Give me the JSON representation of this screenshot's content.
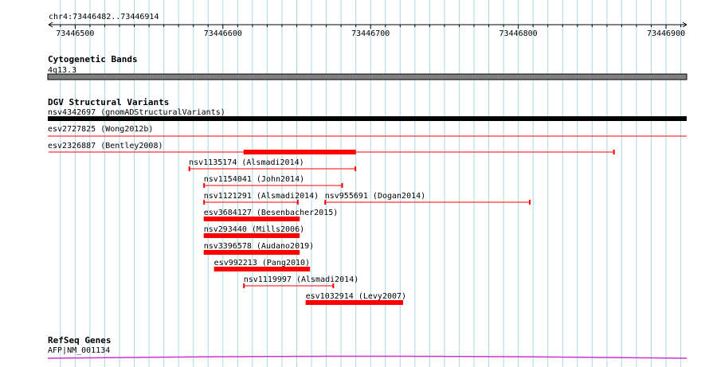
{
  "locus": "chr4:73446482..73446914",
  "ruler": {
    "start": 73446482,
    "end": 73446914,
    "ticks": [
      "73446500",
      "73446600",
      "73446700",
      "73446800",
      "73446900"
    ]
  },
  "colors": {
    "variant": "#ff0000",
    "band": "#808080",
    "gene": "#cc33cc",
    "grid": "#add8e6"
  },
  "cytoband": {
    "title": "Cytogenetic Bands",
    "label": "4q13.3"
  },
  "dgv": {
    "title": "DGV Structural Variants",
    "items": [
      {
        "label": "nsv4342697 (gnomADStructuralVariants)",
        "start": 73446482,
        "end": 73446914,
        "style": "full-black"
      },
      {
        "label": "esv2727825 (Wong2012b)",
        "start": 73446482,
        "end": 73446914,
        "style": "full-thin"
      },
      {
        "label": "esv2326887 (Bentley2008)",
        "start": 73446482,
        "end": 73446865,
        "style": "line",
        "thick_start": 73446614,
        "thick_end": 73446690
      },
      {
        "label": "nsv1135174 (Alsmadi2014)",
        "start": 73446577,
        "end": 73446690,
        "style": "line"
      },
      {
        "label": "nsv1154041 (John2014)",
        "start": 73446587,
        "end": 73446681,
        "style": "line"
      },
      {
        "label": "nsv1121291 (Alsmadi2014)",
        "start": 73446587,
        "end": 73446651,
        "style": "line"
      },
      {
        "label": "nsv955691 (Dogan2014)",
        "start": 73446669,
        "end": 73446808,
        "style": "line"
      },
      {
        "label": "esv3684127 (Besenbacher2015)",
        "start": 73446587,
        "end": 73446652,
        "style": "thick"
      },
      {
        "label": "nsv293440 (Mills2006)",
        "start": 73446587,
        "end": 73446652,
        "style": "thick"
      },
      {
        "label": "nsv3396578 (Audano2019)",
        "start": 73446587,
        "end": 73446652,
        "style": "thick"
      },
      {
        "label": "esv992213 (Pang2010)",
        "start": 73446594,
        "end": 73446659,
        "style": "thick"
      },
      {
        "label": "nsv1119997 (Alsmadi2014)",
        "start": 73446614,
        "end": 73446675,
        "style": "line"
      },
      {
        "label": "esv1032914 (Levy2007)",
        "start": 73446656,
        "end": 73446722,
        "style": "thick"
      }
    ]
  },
  "refseq": {
    "title": "RefSeq Genes",
    "label": "AFP|NM_001134"
  }
}
